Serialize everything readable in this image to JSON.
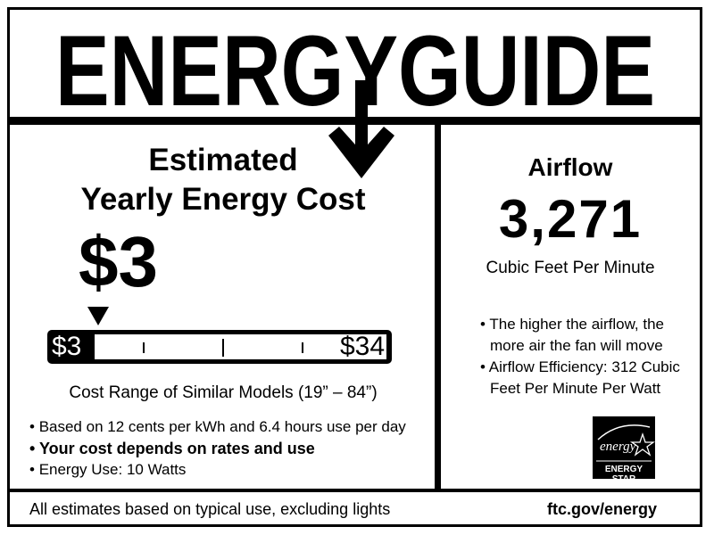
{
  "title": "ENERGYGUIDE",
  "left": {
    "heading_line1": "Estimated",
    "heading_line2": "Yearly Energy Cost",
    "cost": "$3",
    "range_min": "$3",
    "range_max": "$34",
    "indicator_position_fraction": 0.0,
    "range_caption": "Cost Range of Similar Models (19” – 84”)",
    "bullets": [
      "Based on 12 cents per kWh and 6.4 hours use per day",
      "Your cost depends on rates and use",
      "Energy Use: 10 Watts"
    ]
  },
  "right": {
    "heading": "Airflow",
    "value": "3,271",
    "unit": "Cubic Feet Per Minute",
    "bullets": [
      "The higher the airflow, the more air the fan will move",
      "Airflow Efficiency: 312 Cubic Feet Per Minute Per Watt"
    ],
    "logo_script": "energy",
    "logo_label": "ENERGY STAR"
  },
  "footer": {
    "left": "All estimates based on typical use, excluding lights",
    "right": "ftc.gov/energy"
  }
}
